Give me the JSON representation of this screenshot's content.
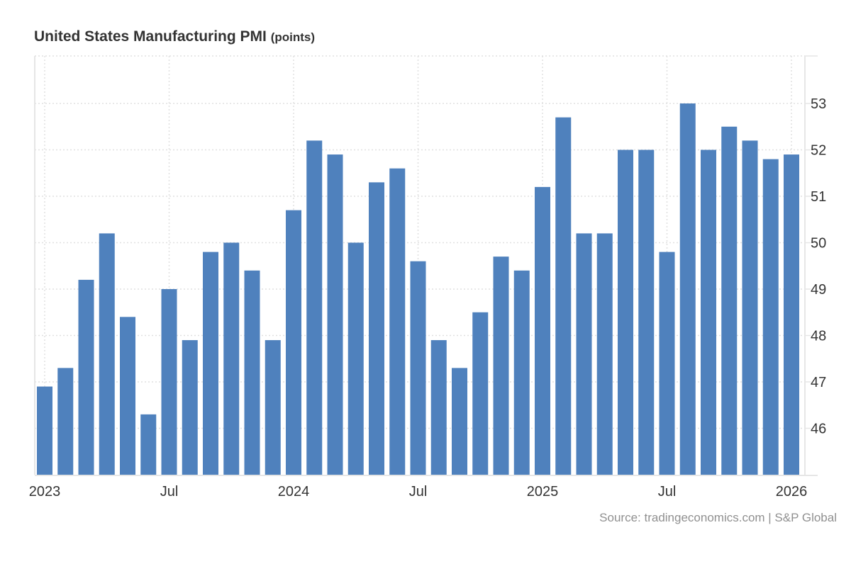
{
  "chart_data": {
    "type": "bar",
    "title": "United States Manufacturing PMI",
    "unit_label": "(points)",
    "xlabel": "",
    "ylabel": "",
    "ylim": [
      45,
      54
    ],
    "y_ticks": [
      46,
      47,
      48,
      49,
      50,
      51,
      52,
      53
    ],
    "y_axis_position": "right",
    "grid": true,
    "x_tick_labels": [
      {
        "label": "2023",
        "index": 0
      },
      {
        "label": "Jul",
        "index": 6
      },
      {
        "label": "2024",
        "index": 12
      },
      {
        "label": "Jul",
        "index": 18
      },
      {
        "label": "2025",
        "index": 24
      },
      {
        "label": "Jul",
        "index": 30
      },
      {
        "label": "2026",
        "index": 36
      }
    ],
    "categories": [
      "Jan 2023",
      "Feb 2023",
      "Mar 2023",
      "Apr 2023",
      "May 2023",
      "Jun 2023",
      "Jul 2023",
      "Aug 2023",
      "Sep 2023",
      "Oct 2023",
      "Nov 2023",
      "Dec 2023",
      "Jan 2024",
      "Feb 2024",
      "Mar 2024",
      "Apr 2024",
      "May 2024",
      "Jun 2024",
      "Jul 2024",
      "Aug 2024",
      "Sep 2024",
      "Oct 2024",
      "Nov 2024",
      "Dec 2024",
      "Jan 2025",
      "Feb 2025",
      "Mar 2025",
      "Apr 2025",
      "May 2025",
      "Jun 2025",
      "Jul 2025",
      "Aug 2025",
      "Sep 2025",
      "Oct 2025",
      "Nov 2025",
      "Dec 2025",
      "Jan 2026"
    ],
    "series": [
      {
        "name": "Manufacturing PMI",
        "color": "#4f81bd",
        "values": [
          46.9,
          47.3,
          49.2,
          50.2,
          48.4,
          46.3,
          49.0,
          47.9,
          49.8,
          50.0,
          49.4,
          47.9,
          50.7,
          52.2,
          51.9,
          50.0,
          51.3,
          51.6,
          49.6,
          47.9,
          47.3,
          48.5,
          49.7,
          49.4,
          51.2,
          52.7,
          50.2,
          50.2,
          52.0,
          52.0,
          49.8,
          53.0,
          52.0,
          52.5,
          52.2,
          51.8,
          51.9
        ]
      }
    ],
    "source": "Source: tradingeconomics.com | S&P Global"
  },
  "colors": {
    "bar": "#4f81bd",
    "grid": "#e0e0e0",
    "axis": "#e6e6e6",
    "tick_text": "#333333",
    "source_text": "#909090"
  }
}
